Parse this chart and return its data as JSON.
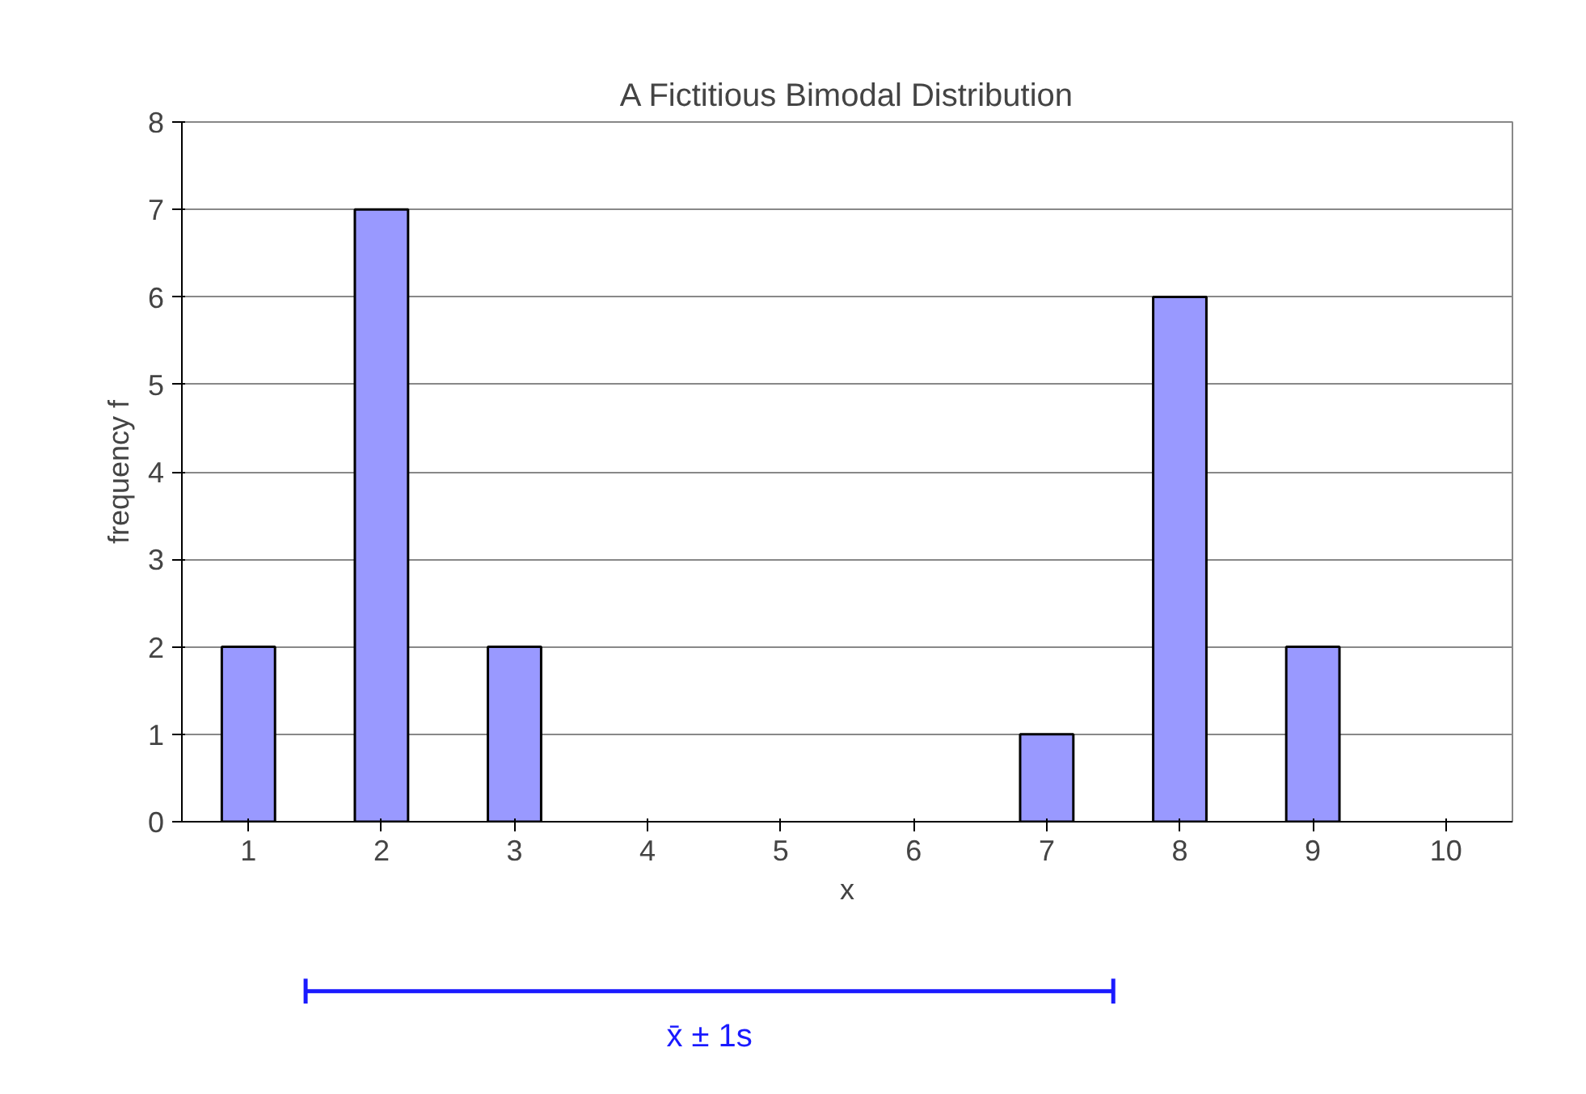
{
  "chart_data": {
    "type": "bar",
    "title": "A Fictitious Bimodal Distribution",
    "xlabel": "x",
    "ylabel": "frequency f",
    "categories": [
      "1",
      "2",
      "3",
      "4",
      "5",
      "6",
      "7",
      "8",
      "9",
      "10"
    ],
    "values": [
      2,
      7,
      2,
      0,
      0,
      0,
      1,
      6,
      2,
      0
    ],
    "color": "#9999ff",
    "ylim": [
      0,
      8
    ],
    "yticks": [
      0,
      1,
      2,
      3,
      4,
      5,
      6,
      7,
      8
    ],
    "grid": "y",
    "annotations": [
      "x̄ ± 1s"
    ]
  }
}
